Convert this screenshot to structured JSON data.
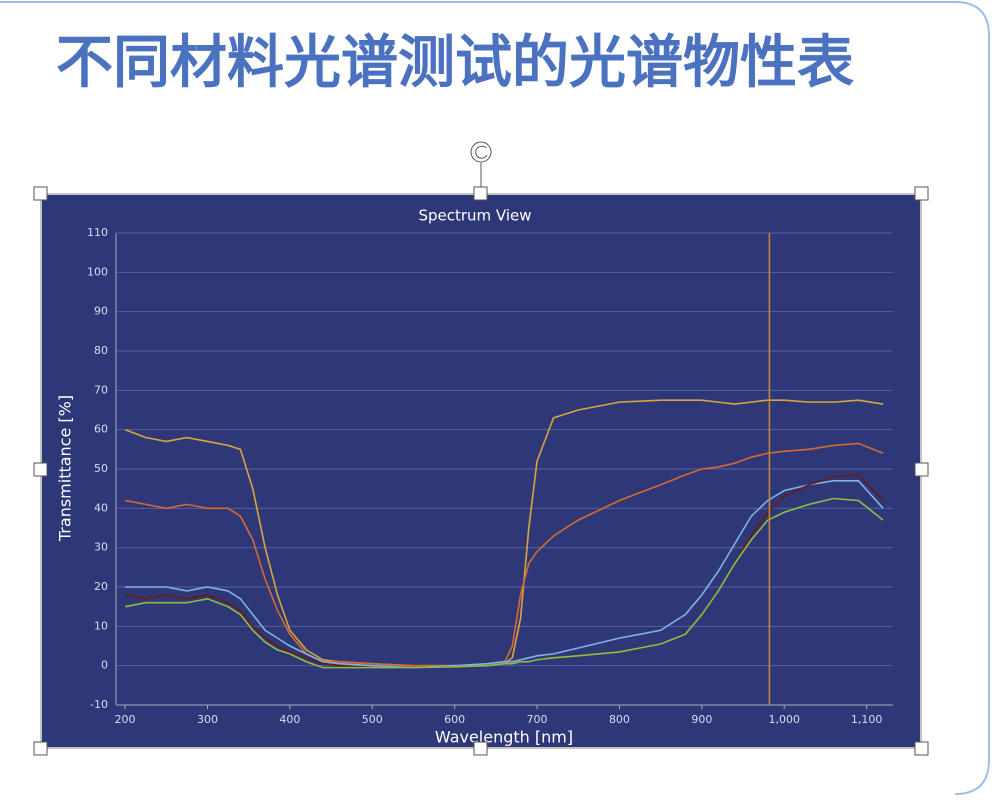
{
  "header": {
    "title": "不同材料光谱测试的光谱物性表"
  },
  "chart_data": {
    "type": "line",
    "title": "Spectrum View",
    "x_label": "Wavelength [nm]",
    "y_label": "Transmittance [%]",
    "x": [
      200,
      225,
      250,
      275,
      300,
      325,
      340,
      355,
      370,
      385,
      400,
      420,
      440,
      460,
      500,
      550,
      600,
      640,
      660,
      670,
      680,
      690,
      700,
      720,
      750,
      800,
      850,
      880,
      900,
      920,
      940,
      960,
      980,
      1000,
      1030,
      1060,
      1090,
      1120
    ],
    "series": [
      {
        "color": "#d9a43a",
        "values": [
          60,
          58,
          57,
          58,
          57,
          56,
          55,
          45,
          30,
          18,
          9,
          4,
          1.5,
          1,
          0.5,
          0,
          0,
          0,
          0.5,
          2,
          12,
          35,
          52,
          63,
          65,
          67,
          67.5,
          67.5,
          67.5,
          67,
          66.5,
          67,
          67.5,
          67.5,
          67,
          67,
          67.5,
          66.5
        ]
      },
      {
        "color": "#d8692e",
        "values": [
          42,
          41,
          40,
          41,
          40,
          40,
          38,
          32,
          22,
          14,
          8,
          3,
          1,
          1,
          0.5,
          0,
          0,
          0,
          0.5,
          5,
          18,
          26,
          29,
          33,
          37,
          42,
          46,
          48.5,
          50,
          50.5,
          51.5,
          53,
          54,
          54.5,
          55,
          56,
          56.5,
          54
        ]
      },
      {
        "color": "#7fb2e5",
        "values": [
          20,
          20,
          20,
          19,
          20,
          19,
          17,
          13,
          9,
          7,
          5,
          3,
          1,
          0.5,
          0,
          -0.5,
          0,
          0.5,
          1,
          1,
          1.5,
          2,
          2.5,
          3,
          4.5,
          7,
          9,
          13,
          18,
          24,
          31,
          38,
          42,
          44.5,
          46,
          47,
          47,
          40
        ]
      },
      {
        "color": "#6b1a14",
        "values": [
          18,
          17,
          18,
          17,
          18,
          16,
          14,
          10,
          7,
          5,
          3.5,
          2,
          0.5,
          0,
          -0.5,
          -0.5,
          -0.3,
          0,
          0.5,
          0.5,
          1,
          1,
          1.5,
          2,
          2.5,
          3.5,
          5.5,
          8,
          13,
          19,
          26,
          33,
          39,
          43,
          46,
          48,
          48.5,
          42
        ]
      },
      {
        "color": "#8cbf3f",
        "values": [
          15,
          16,
          16,
          16,
          17,
          15,
          13,
          9,
          6,
          4,
          3,
          1,
          -0.5,
          -0.5,
          -0.5,
          -0.5,
          -0.3,
          0,
          0.5,
          0.5,
          1,
          1,
          1.5,
          2,
          2.5,
          3.5,
          5.5,
          8,
          13,
          19,
          26,
          32,
          37,
          39,
          41,
          42.5,
          42,
          37
        ]
      }
    ],
    "xlim": [
      189,
      1132
    ],
    "ylim": [
      -10,
      110
    ],
    "xticks": [
      200,
      300,
      400,
      500,
      600,
      700,
      800,
      900,
      {
        "value": 1000,
        "label": "1,000"
      },
      {
        "value": 1100,
        "label": "1,100"
      }
    ],
    "yticks": [
      -10,
      0,
      10,
      20,
      30,
      40,
      50,
      60,
      70,
      80,
      90,
      100,
      110
    ],
    "grid": true,
    "vline": 982,
    "vline_color": "#c8873a",
    "background": "#2e3878"
  }
}
